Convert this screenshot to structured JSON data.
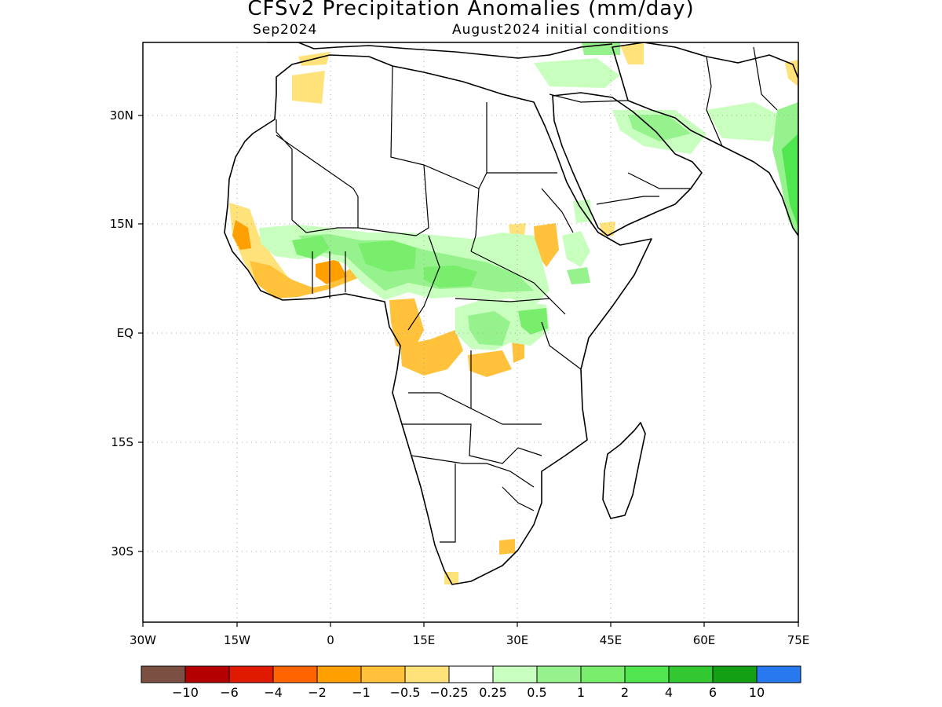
{
  "title": "CFSv2 Precipitation Anomalies (mm/day)",
  "subtitle_left": "Sep2024",
  "subtitle_right": "August2024 initial conditions",
  "y_ticks": [
    "30N",
    "15N",
    "EQ",
    "15S",
    "30S"
  ],
  "x_ticks": [
    "30W",
    "15W",
    "0",
    "15E",
    "30E",
    "45E",
    "60E",
    "75E"
  ],
  "legend": {
    "colors": [
      "#7b5042",
      "#b40000",
      "#e01a00",
      "#ff6400",
      "#ffa000",
      "#ffc23a",
      "#ffe27a",
      "#ffffff",
      "#c8ffbe",
      "#96f28c",
      "#78ee6c",
      "#50e650",
      "#32c832",
      "#14a014",
      "#2878f0"
    ],
    "labels": [
      "−10",
      "−6",
      "−4",
      "−2",
      "−1",
      "−0.5",
      "−0.25",
      "0.25",
      "0.5",
      "1",
      "2",
      "4",
      "6",
      "10"
    ]
  },
  "map": {
    "lon_range": [
      -30,
      75
    ],
    "lat_range": [
      -40,
      40
    ],
    "grid": "dotted",
    "region": "Africa and Middle East"
  }
}
